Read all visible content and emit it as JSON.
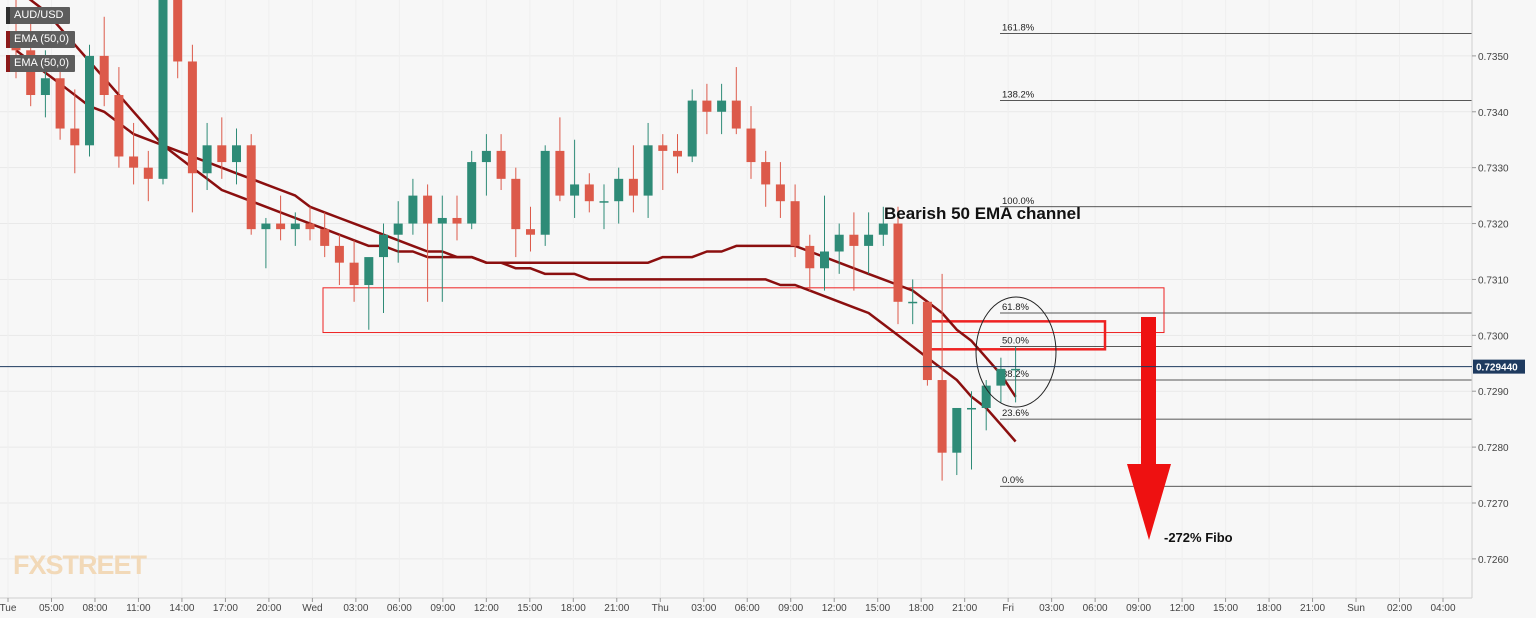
{
  "chart": {
    "symbol": "AUD/USD",
    "indicators": [
      "EMA (50,0)",
      "EMA (50,0)"
    ],
    "watermark": "FXSTREET",
    "current_price": "0.729440",
    "channel_label": "Bearish 50 EMA channel",
    "target_label": "-272% Fibo",
    "colors": {
      "up": "#2e8b77",
      "down": "#dc5a4a",
      "ema": "#8b0f0f",
      "annotation": "#ee2222",
      "price_tag": "#1e3a5f",
      "background": "#f7f7f7"
    }
  },
  "chart_data": {
    "type": "candlestick",
    "title": "AUD/USD",
    "yaxis": {
      "min": 0.7253,
      "max": 0.736,
      "ticks": [
        "0.7260",
        "0.7270",
        "0.7280",
        "0.7290",
        "0.7300",
        "0.7310",
        "0.7320",
        "0.7330",
        "0.7340",
        "0.7350"
      ]
    },
    "xaxis": {
      "ticks": [
        "Tue",
        "05:00",
        "08:00",
        "11:00",
        "14:00",
        "17:00",
        "20:00",
        "Wed",
        "03:00",
        "06:00",
        "09:00",
        "12:00",
        "15:00",
        "18:00",
        "21:00",
        "Thu",
        "03:00",
        "06:00",
        "09:00",
        "12:00",
        "15:00",
        "18:00",
        "21:00",
        "Fri",
        "03:00",
        "06:00",
        "09:00",
        "12:00",
        "15:00",
        "18:00",
        "21:00",
        "Sun",
        "02:00",
        "04:00"
      ]
    },
    "candles": [
      {
        "o": 0.7354,
        "h": 0.736,
        "l": 0.7346,
        "c": 0.7351
      },
      {
        "o": 0.7351,
        "h": 0.7356,
        "l": 0.7341,
        "c": 0.7343
      },
      {
        "o": 0.7343,
        "h": 0.7351,
        "l": 0.7339,
        "c": 0.7346
      },
      {
        "o": 0.7346,
        "h": 0.7349,
        "l": 0.7335,
        "c": 0.7337
      },
      {
        "o": 0.7337,
        "h": 0.7344,
        "l": 0.7329,
        "c": 0.7334
      },
      {
        "o": 0.7334,
        "h": 0.7352,
        "l": 0.7332,
        "c": 0.735
      },
      {
        "o": 0.735,
        "h": 0.7357,
        "l": 0.7341,
        "c": 0.7343
      },
      {
        "o": 0.7343,
        "h": 0.7348,
        "l": 0.733,
        "c": 0.7332
      },
      {
        "o": 0.7332,
        "h": 0.7338,
        "l": 0.7327,
        "c": 0.733
      },
      {
        "o": 0.733,
        "h": 0.7333,
        "l": 0.7324,
        "c": 0.7328
      },
      {
        "o": 0.7328,
        "h": 0.7362,
        "l": 0.7327,
        "c": 0.7362
      },
      {
        "o": 0.7362,
        "h": 0.7365,
        "l": 0.7346,
        "c": 0.7349
      },
      {
        "o": 0.7349,
        "h": 0.7352,
        "l": 0.7322,
        "c": 0.7329
      },
      {
        "o": 0.7329,
        "h": 0.7338,
        "l": 0.7326,
        "c": 0.7334
      },
      {
        "o": 0.7334,
        "h": 0.7339,
        "l": 0.7328,
        "c": 0.7331
      },
      {
        "o": 0.7331,
        "h": 0.7337,
        "l": 0.7327,
        "c": 0.7334
      },
      {
        "o": 0.7334,
        "h": 0.7336,
        "l": 0.7318,
        "c": 0.7319
      },
      {
        "o": 0.7319,
        "h": 0.7321,
        "l": 0.7312,
        "c": 0.732
      },
      {
        "o": 0.732,
        "h": 0.7325,
        "l": 0.7317,
        "c": 0.7319
      },
      {
        "o": 0.7319,
        "h": 0.7322,
        "l": 0.7316,
        "c": 0.732
      },
      {
        "o": 0.732,
        "h": 0.7323,
        "l": 0.7317,
        "c": 0.7319
      },
      {
        "o": 0.7319,
        "h": 0.7322,
        "l": 0.7314,
        "c": 0.7316
      },
      {
        "o": 0.7316,
        "h": 0.7318,
        "l": 0.7309,
        "c": 0.7313
      },
      {
        "o": 0.7313,
        "h": 0.7317,
        "l": 0.7306,
        "c": 0.7309
      },
      {
        "o": 0.7309,
        "h": 0.7313,
        "l": 0.7301,
        "c": 0.7314
      },
      {
        "o": 0.7314,
        "h": 0.732,
        "l": 0.7304,
        "c": 0.7318
      },
      {
        "o": 0.7318,
        "h": 0.7324,
        "l": 0.7313,
        "c": 0.732
      },
      {
        "o": 0.732,
        "h": 0.7328,
        "l": 0.7318,
        "c": 0.7325
      },
      {
        "o": 0.7325,
        "h": 0.7327,
        "l": 0.7306,
        "c": 0.732
      },
      {
        "o": 0.732,
        "h": 0.7325,
        "l": 0.7306,
        "c": 0.7321
      },
      {
        "o": 0.7321,
        "h": 0.7325,
        "l": 0.7317,
        "c": 0.732
      },
      {
        "o": 0.732,
        "h": 0.7333,
        "l": 0.7319,
        "c": 0.7331
      },
      {
        "o": 0.7331,
        "h": 0.7336,
        "l": 0.7325,
        "c": 0.7333
      },
      {
        "o": 0.7333,
        "h": 0.7336,
        "l": 0.7326,
        "c": 0.7328
      },
      {
        "o": 0.7328,
        "h": 0.733,
        "l": 0.7314,
        "c": 0.7319
      },
      {
        "o": 0.7319,
        "h": 0.7323,
        "l": 0.7315,
        "c": 0.7318
      },
      {
        "o": 0.7318,
        "h": 0.7334,
        "l": 0.7316,
        "c": 0.7333
      },
      {
        "o": 0.7333,
        "h": 0.7339,
        "l": 0.7324,
        "c": 0.7325
      },
      {
        "o": 0.7325,
        "h": 0.7335,
        "l": 0.7321,
        "c": 0.7327
      },
      {
        "o": 0.7327,
        "h": 0.7329,
        "l": 0.7322,
        "c": 0.7324
      },
      {
        "o": 0.7324,
        "h": 0.7327,
        "l": 0.7319,
        "c": 0.7324
      },
      {
        "o": 0.7324,
        "h": 0.733,
        "l": 0.732,
        "c": 0.7328
      },
      {
        "o": 0.7328,
        "h": 0.7334,
        "l": 0.7322,
        "c": 0.7325
      },
      {
        "o": 0.7325,
        "h": 0.7338,
        "l": 0.7321,
        "c": 0.7334
      },
      {
        "o": 0.7334,
        "h": 0.7336,
        "l": 0.7326,
        "c": 0.7333
      },
      {
        "o": 0.7333,
        "h": 0.7336,
        "l": 0.7329,
        "c": 0.7332
      },
      {
        "o": 0.7332,
        "h": 0.7344,
        "l": 0.7331,
        "c": 0.7342
      },
      {
        "o": 0.7342,
        "h": 0.7345,
        "l": 0.7336,
        "c": 0.734
      },
      {
        "o": 0.734,
        "h": 0.7345,
        "l": 0.7336,
        "c": 0.7342
      },
      {
        "o": 0.7342,
        "h": 0.7348,
        "l": 0.7336,
        "c": 0.7337
      },
      {
        "o": 0.7337,
        "h": 0.7341,
        "l": 0.7328,
        "c": 0.7331
      },
      {
        "o": 0.7331,
        "h": 0.7333,
        "l": 0.7323,
        "c": 0.7327
      },
      {
        "o": 0.7327,
        "h": 0.7331,
        "l": 0.7321,
        "c": 0.7324
      },
      {
        "o": 0.7324,
        "h": 0.7327,
        "l": 0.7314,
        "c": 0.7316
      },
      {
        "o": 0.7316,
        "h": 0.7318,
        "l": 0.7308,
        "c": 0.7312
      },
      {
        "o": 0.7312,
        "h": 0.7325,
        "l": 0.7308,
        "c": 0.7315
      },
      {
        "o": 0.7315,
        "h": 0.732,
        "l": 0.7311,
        "c": 0.7318
      },
      {
        "o": 0.7318,
        "h": 0.7322,
        "l": 0.7308,
        "c": 0.7316
      },
      {
        "o": 0.7316,
        "h": 0.7322,
        "l": 0.7311,
        "c": 0.7318
      },
      {
        "o": 0.7318,
        "h": 0.7323,
        "l": 0.7316,
        "c": 0.732
      },
      {
        "o": 0.732,
        "h": 0.7323,
        "l": 0.7302,
        "c": 0.7306
      },
      {
        "o": 0.7306,
        "h": 0.731,
        "l": 0.7302,
        "c": 0.7306
      },
      {
        "o": 0.7306,
        "h": 0.7306,
        "l": 0.7291,
        "c": 0.7292
      },
      {
        "o": 0.7292,
        "h": 0.7311,
        "l": 0.7274,
        "c": 0.7279
      },
      {
        "o": 0.7279,
        "h": 0.7287,
        "l": 0.7275,
        "c": 0.7287
      },
      {
        "o": 0.7287,
        "h": 0.729,
        "l": 0.7276,
        "c": 0.7287
      },
      {
        "o": 0.7287,
        "h": 0.7292,
        "l": 0.7283,
        "c": 0.7291
      },
      {
        "o": 0.7291,
        "h": 0.7296,
        "l": 0.7288,
        "c": 0.7294
      },
      {
        "o": 0.7294,
        "h": 0.7298,
        "l": 0.7288,
        "c": 0.7294
      }
    ],
    "ema_upper": [
      0.7362,
      0.736,
      0.7358,
      0.7355,
      0.7352,
      0.7349,
      0.7346,
      0.7343,
      0.734,
      0.7337,
      0.7334,
      0.7332,
      0.733,
      0.7328,
      0.7326,
      0.7325,
      0.7324,
      0.7323,
      0.7322,
      0.7321,
      0.732,
      0.7319,
      0.7318,
      0.7317,
      0.7316,
      0.7316,
      0.7315,
      0.7315,
      0.7314,
      0.7314,
      0.7314,
      0.7314,
      0.7313,
      0.7313,
      0.7313,
      0.7313,
      0.7313,
      0.7313,
      0.7313,
      0.7313,
      0.7313,
      0.7313,
      0.7313,
      0.7313,
      0.7314,
      0.7314,
      0.7314,
      0.7315,
      0.7315,
      0.7316,
      0.7316,
      0.7316,
      0.7316,
      0.7316,
      0.7315,
      0.7314,
      0.7313,
      0.7312,
      0.7311,
      0.731,
      0.7309,
      0.7308,
      0.7306,
      0.7304,
      0.7301,
      0.7299,
      0.7296,
      0.7293,
      0.7289
    ],
    "ema_lower": [
      0.7351,
      0.7349,
      0.7347,
      0.7345,
      0.7343,
      0.7341,
      0.734,
      0.7338,
      0.7336,
      0.7335,
      0.7334,
      0.7333,
      0.7332,
      0.7331,
      0.733,
      0.7329,
      0.7328,
      0.7327,
      0.7326,
      0.7325,
      0.7323,
      0.7322,
      0.7321,
      0.732,
      0.7319,
      0.7318,
      0.7317,
      0.7316,
      0.7315,
      0.7315,
      0.7314,
      0.7314,
      0.7313,
      0.7313,
      0.7312,
      0.7312,
      0.7311,
      0.7311,
      0.7311,
      0.731,
      0.731,
      0.731,
      0.731,
      0.731,
      0.731,
      0.731,
      0.731,
      0.731,
      0.731,
      0.731,
      0.731,
      0.731,
      0.7309,
      0.7309,
      0.7308,
      0.7307,
      0.7306,
      0.7305,
      0.7304,
      0.7302,
      0.73,
      0.7298,
      0.7296,
      0.7294,
      0.7292,
      0.7289,
      0.7287,
      0.7284,
      0.7281
    ],
    "fibonacci": [
      {
        "label": "161.8%",
        "price": 0.7354
      },
      {
        "label": "138.2%",
        "price": 0.7342
      },
      {
        "label": "100.0%",
        "price": 0.7323
      },
      {
        "label": "61.8%",
        "price": 0.7304
      },
      {
        "label": "50.0%",
        "price": 0.7298
      },
      {
        "label": "38.2%",
        "price": 0.7292
      },
      {
        "label": "23.6%",
        "price": 0.7285
      },
      {
        "label": "0.0%",
        "price": 0.7273
      }
    ],
    "zones": {
      "support_box": {
        "price_top": 0.73085,
        "price_bottom": 0.73005
      },
      "target_box": {
        "price_top": 0.73025,
        "price_bottom": 0.72975
      }
    },
    "current_price": 0.72944,
    "grid": true
  }
}
